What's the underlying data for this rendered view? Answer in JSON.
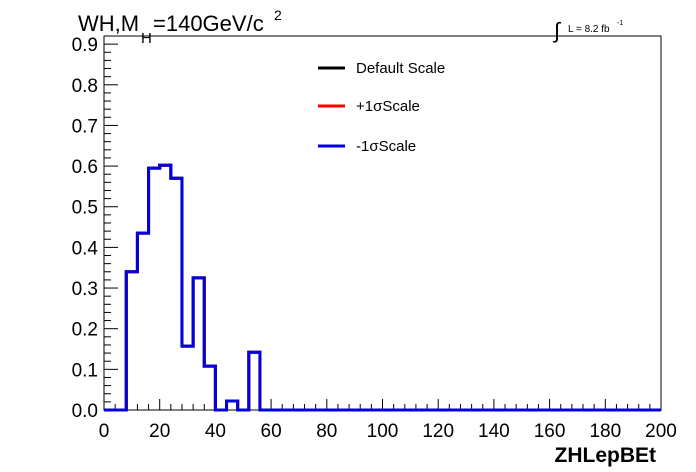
{
  "chart_data": {
    "type": "line",
    "title_main": "WH,M",
    "title_sub": "H",
    "title_rest": "=140GeV/c",
    "title_sup": "2",
    "lumi_integral": "∫",
    "lumi_text": "L = 8.2 fb",
    "lumi_sup": "-1",
    "xlabel": "ZHLepBEt",
    "xlim": [
      0,
      200
    ],
    "ylim": [
      0,
      0.92
    ],
    "xticks": [
      0,
      20,
      40,
      60,
      80,
      100,
      120,
      140,
      160,
      180,
      200
    ],
    "xtick_labels": [
      "0",
      "20",
      "40",
      "60",
      "80",
      "100",
      "120",
      "140",
      "160",
      "180",
      "200"
    ],
    "yticks": [
      0.0,
      0.1,
      0.2,
      0.3,
      0.4,
      0.5,
      0.6,
      0.7,
      0.8,
      0.9
    ],
    "ytick_labels": [
      "0.0",
      "0.1",
      "0.2",
      "0.3",
      "0.4",
      "0.5",
      "0.6",
      "0.7",
      "0.8",
      "0.9"
    ],
    "bin_edges": [
      0,
      4,
      8,
      12,
      16,
      20,
      24,
      28,
      32,
      36,
      40,
      44,
      48,
      52,
      56,
      60,
      64,
      68,
      72,
      76,
      80,
      84,
      88,
      92,
      96,
      100,
      104,
      108,
      112,
      116,
      120,
      124,
      128,
      132,
      136,
      140,
      144,
      148,
      152,
      156,
      160,
      164,
      168,
      172,
      176,
      180,
      184,
      188,
      192,
      196,
      200
    ],
    "series": [
      {
        "name": "Default Scale",
        "color": "#000000",
        "values": [
          0,
          0,
          0.34,
          0.435,
          0.595,
          0.602,
          0.57,
          0.157,
          0.325,
          0.108,
          0,
          0.022,
          0,
          0.142,
          0,
          0,
          0,
          0,
          0,
          0,
          0,
          0,
          0,
          0,
          0,
          0,
          0,
          0,
          0,
          0,
          0,
          0,
          0,
          0,
          0,
          0,
          0,
          0,
          0,
          0,
          0,
          0,
          0,
          0,
          0,
          0,
          0,
          0,
          0,
          0
        ]
      },
      {
        "name": "+1σScale",
        "color": "#ff0000",
        "values": [
          0,
          0,
          0.34,
          0.435,
          0.595,
          0.602,
          0.57,
          0.157,
          0.325,
          0.108,
          0,
          0.022,
          0,
          0.142,
          0,
          0,
          0,
          0,
          0,
          0,
          0,
          0,
          0,
          0,
          0,
          0,
          0,
          0,
          0,
          0,
          0,
          0,
          0,
          0,
          0,
          0,
          0,
          0,
          0,
          0,
          0,
          0,
          0,
          0,
          0,
          0,
          0,
          0,
          0,
          0
        ]
      },
      {
        "name": "-1σScale",
        "color": "#0000dd",
        "values": [
          0,
          0,
          0.34,
          0.435,
          0.595,
          0.602,
          0.57,
          0.157,
          0.325,
          0.108,
          0,
          0.022,
          0,
          0.142,
          0,
          0,
          0,
          0,
          0,
          0,
          0,
          0,
          0,
          0,
          0,
          0,
          0,
          0,
          0,
          0,
          0,
          0,
          0,
          0,
          0,
          0,
          0,
          0,
          0,
          0,
          0,
          0,
          0,
          0,
          0,
          0,
          0,
          0,
          0,
          0
        ]
      }
    ],
    "legend_position": "top-center",
    "grid": false
  }
}
